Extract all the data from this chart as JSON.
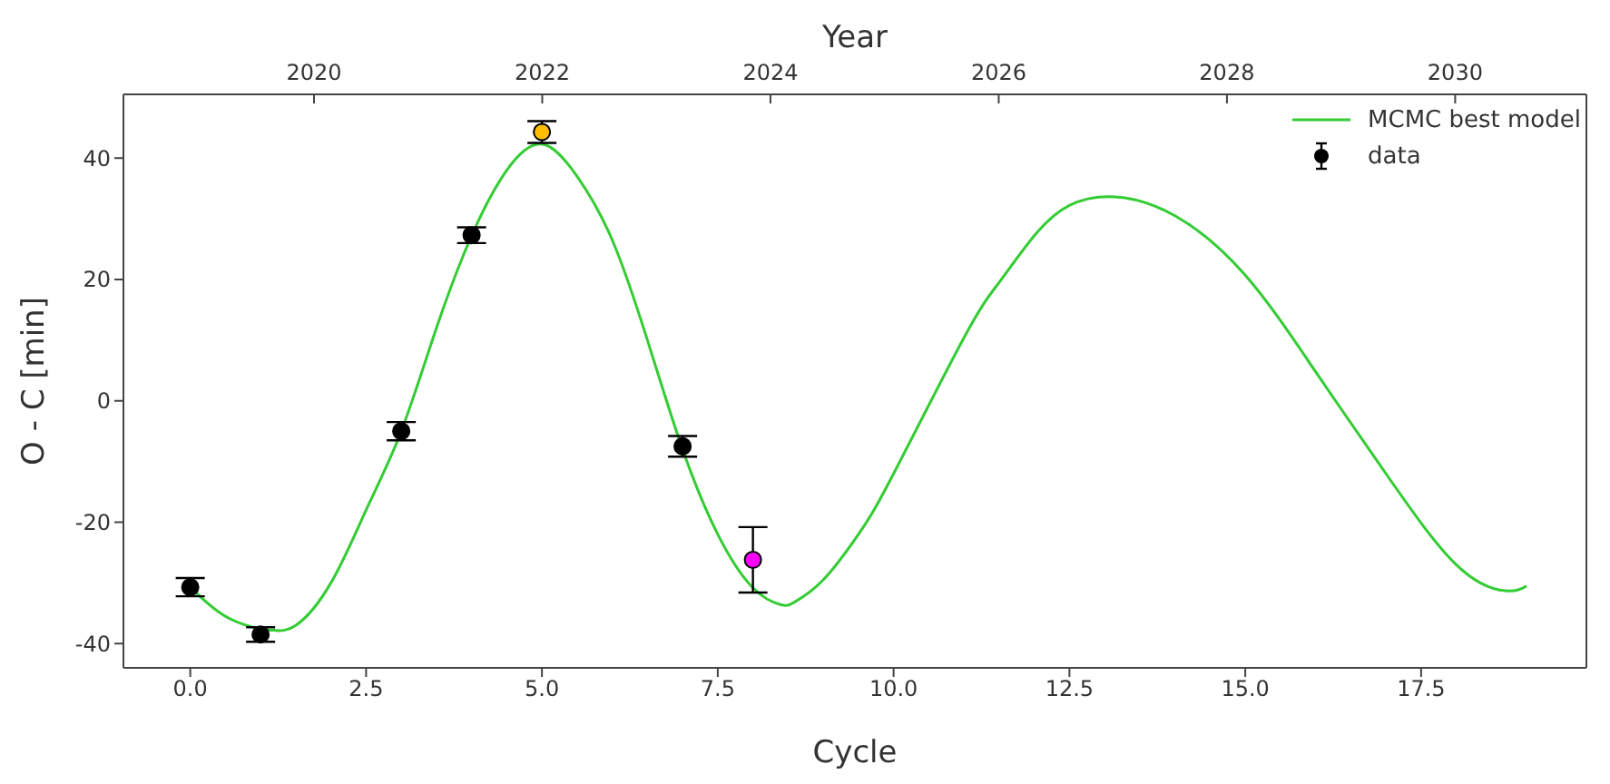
{
  "chart_data": {
    "type": "scatter",
    "xlabel": "Cycle",
    "ylabel": "O - C [min]",
    "x2label": "Year",
    "xlim": [
      -0.95,
      19.85
    ],
    "ylim": [
      -44,
      50.5
    ],
    "x2lim": [
      2018.33,
      2031.15
    ],
    "xticks": [
      {
        "value": 0,
        "label": "0.0"
      },
      {
        "value": 2.5,
        "label": "2.5"
      },
      {
        "value": 5,
        "label": "5.0"
      },
      {
        "value": 7.5,
        "label": "7.5"
      },
      {
        "value": 10,
        "label": "10.0"
      },
      {
        "value": 12.5,
        "label": "12.5"
      },
      {
        "value": 15,
        "label": "15.0"
      },
      {
        "value": 17.5,
        "label": "17.5"
      }
    ],
    "yticks": [
      -40,
      -20,
      0,
      20,
      40
    ],
    "x2ticks": [
      2020,
      2022,
      2024,
      2026,
      2028,
      2030
    ],
    "grid": false,
    "legend": "top right",
    "series": [
      {
        "name": "MCMC best model",
        "type": "line",
        "color": "#33cc33",
        "marker": "none",
        "line_style": "solid",
        "x": [
          0,
          0.5,
          1,
          1.2,
          1.5,
          2,
          2.5,
          3,
          3.5,
          4,
          4.5,
          5,
          5.5,
          6,
          6.5,
          7,
          7.5,
          8,
          8.4,
          8.6,
          9,
          9.5,
          10,
          11,
          11.5,
          12,
          12.5,
          13.15,
          14,
          15,
          16,
          17,
          18,
          18.7,
          19
        ],
        "values": [
          -30.7,
          -35.5,
          -37.6,
          -37.8,
          -37,
          -30,
          -18,
          -5,
          12,
          27.2,
          38,
          42.3,
          37,
          26.5,
          10,
          -8,
          -22,
          -30.8,
          -33.6,
          -33.1,
          -29.5,
          -22,
          -12,
          10.4,
          19.5,
          27.2,
          32.2,
          33.6,
          30.5,
          20.7,
          4.8,
          -12,
          -27,
          -31.3,
          -30.5
        ]
      },
      {
        "name": "data",
        "color": "#000000",
        "marker": "circle",
        "x": [
          0,
          1,
          3,
          4,
          5,
          7,
          8
        ],
        "values": [
          -30.7,
          -38.5,
          -5,
          27.3,
          44.3,
          -7.5,
          -26.2
        ],
        "errors": [
          1.5,
          1.2,
          1.5,
          1.3,
          1.8,
          1.7,
          5.4
        ],
        "colors": [
          "#000000",
          "#000000",
          "#000000",
          "#000000",
          "#ffbf00",
          "#000000",
          "#ff00ff"
        ]
      }
    ]
  }
}
